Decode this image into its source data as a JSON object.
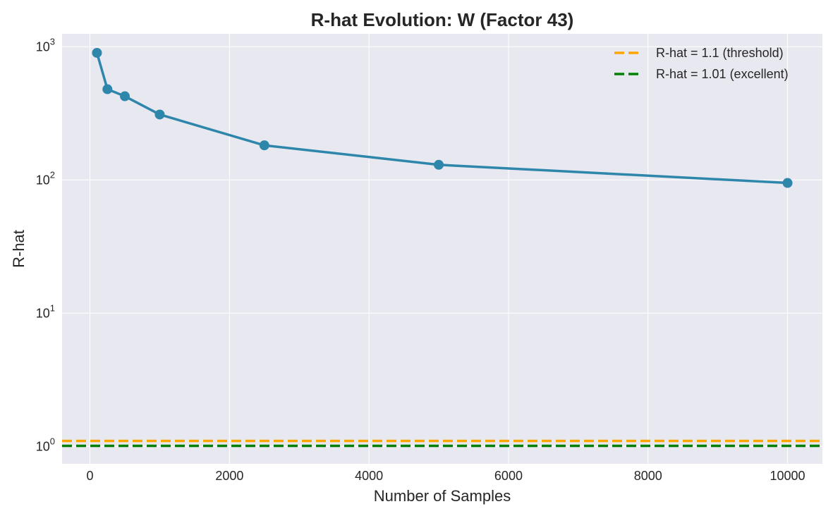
{
  "chart_data": {
    "type": "line",
    "title": "R-hat Evolution: W (Factor 43)",
    "xlabel": "Number of Samples",
    "ylabel": "R-hat",
    "x": [
      100,
      250,
      500,
      1000,
      2500,
      5000,
      10000
    ],
    "series": [
      {
        "values": [
          900,
          480,
          425,
          310,
          182,
          130,
          95
        ],
        "color": "#2e86ab"
      }
    ],
    "reference_lines": [
      {
        "name": "R-hat = 1.1 (threshold)",
        "y": 1.1,
        "color": "#ffa500",
        "style": "dashed"
      },
      {
        "name": "R-hat = 1.01 (excellent)",
        "y": 1.01,
        "color": "#008000",
        "style": "dashed"
      }
    ],
    "xlim": [
      -400,
      10500
    ],
    "ylim": [
      0.74,
      1250
    ],
    "yscale": "log",
    "xticks": [
      0,
      2000,
      4000,
      6000,
      8000,
      10000
    ],
    "yticks": [
      {
        "value": 1,
        "base": "10",
        "exp": "0"
      },
      {
        "value": 10,
        "base": "10",
        "exp": "1"
      },
      {
        "value": 100,
        "base": "10",
        "exp": "2"
      },
      {
        "value": 1000,
        "base": "10",
        "exp": "3"
      }
    ],
    "grid": true,
    "legend_position": "top-right",
    "plot_background": "#e8e8f0"
  }
}
